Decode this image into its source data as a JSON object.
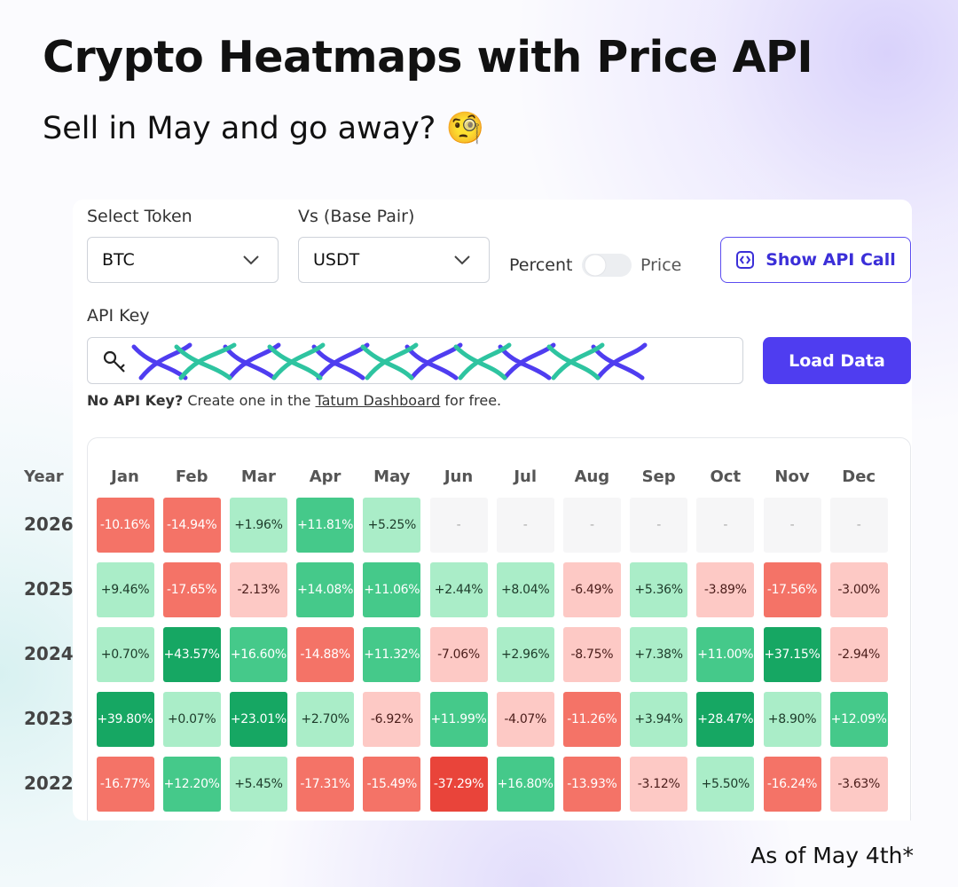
{
  "header": {
    "title": "Crypto Heatmaps with Price API",
    "subtitle": "Sell in May and go away? 🧐"
  },
  "form": {
    "token_label": "Select Token",
    "token_value": "BTC",
    "base_label": "Vs (Base Pair)",
    "base_value": "USDT",
    "toggle_left": "Percent",
    "toggle_right": "Price",
    "api_button": "Show API Call",
    "api_key_label": "API Key",
    "load_button": "Load Data",
    "help_bold": "No API Key?",
    "help_text": "Create one in the",
    "help_link": "Tatum Dashboard",
    "help_end": "for free."
  },
  "heatmap": {
    "year_header": "Year",
    "months": [
      "Jan",
      "Feb",
      "Mar",
      "Apr",
      "May",
      "Jun",
      "Jul",
      "Aug",
      "Sep",
      "Oct",
      "Nov",
      "Dec"
    ],
    "rows": [
      {
        "year": "2026",
        "cells": [
          "-10.16%",
          "-14.94%",
          "+1.96%",
          "+11.81%",
          "+5.25%",
          "-",
          "-",
          "-",
          "-",
          "-",
          "-",
          "-"
        ]
      },
      {
        "year": "2025",
        "cells": [
          "+9.46%",
          "-17.65%",
          "-2.13%",
          "+14.08%",
          "+11.06%",
          "+2.44%",
          "+8.04%",
          "-6.49%",
          "+5.36%",
          "-3.89%",
          "-17.56%",
          "-3.00%"
        ]
      },
      {
        "year": "2024",
        "cells": [
          "+0.70%",
          "+43.57%",
          "+16.60%",
          "-14.88%",
          "+11.32%",
          "-7.06%",
          "+2.96%",
          "-8.75%",
          "+7.38%",
          "+11.00%",
          "+37.15%",
          "-2.94%"
        ]
      },
      {
        "year": "2023",
        "cells": [
          "+39.80%",
          "+0.07%",
          "+23.01%",
          "+2.70%",
          "-6.92%",
          "+11.99%",
          "-4.07%",
          "-11.26%",
          "+3.94%",
          "+28.47%",
          "+8.90%",
          "+12.09%"
        ]
      },
      {
        "year": "2022",
        "cells": [
          "-16.77%",
          "+12.20%",
          "+5.45%",
          "-17.31%",
          "-15.49%",
          "-37.29%",
          "+16.80%",
          "-13.93%",
          "-3.12%",
          "+5.50%",
          "-16.24%",
          "-3.63%"
        ]
      }
    ]
  },
  "footnote": "As of May 4th*"
}
